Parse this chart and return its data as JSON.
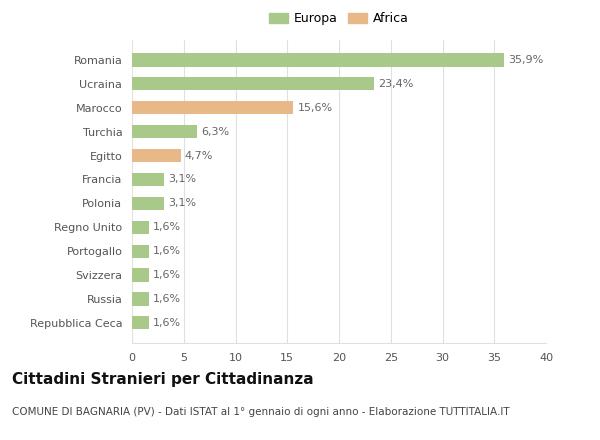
{
  "categories": [
    "Romania",
    "Ucraina",
    "Marocco",
    "Turchia",
    "Egitto",
    "Francia",
    "Polonia",
    "Regno Unito",
    "Portogallo",
    "Svizzera",
    "Russia",
    "Repubblica Ceca"
  ],
  "values": [
    35.9,
    23.4,
    15.6,
    6.3,
    4.7,
    3.1,
    3.1,
    1.6,
    1.6,
    1.6,
    1.6,
    1.6
  ],
  "continents": [
    "Europa",
    "Europa",
    "Africa",
    "Europa",
    "Africa",
    "Europa",
    "Europa",
    "Europa",
    "Europa",
    "Europa",
    "Europa",
    "Europa"
  ],
  "bar_color_europa": "#a8c98a",
  "bar_color_africa": "#e8b888",
  "legend_color_europa": "#a8c98a",
  "legend_color_africa": "#e8b888",
  "background_color": "#ffffff",
  "grid_color": "#e0e0e0",
  "title": "Cittadini Stranieri per Cittadinanza",
  "subtitle": "COMUNE DI BAGNARIA (PV) - Dati ISTAT al 1° gennaio di ogni anno - Elaborazione TUTTITALIA.IT",
  "xlim": [
    0,
    40
  ],
  "xticks": [
    0,
    5,
    10,
    15,
    20,
    25,
    30,
    35,
    40
  ],
  "bar_height": 0.55,
  "title_fontsize": 11,
  "subtitle_fontsize": 7.5,
  "label_fontsize": 8,
  "tick_fontsize": 8,
  "legend_fontsize": 9
}
